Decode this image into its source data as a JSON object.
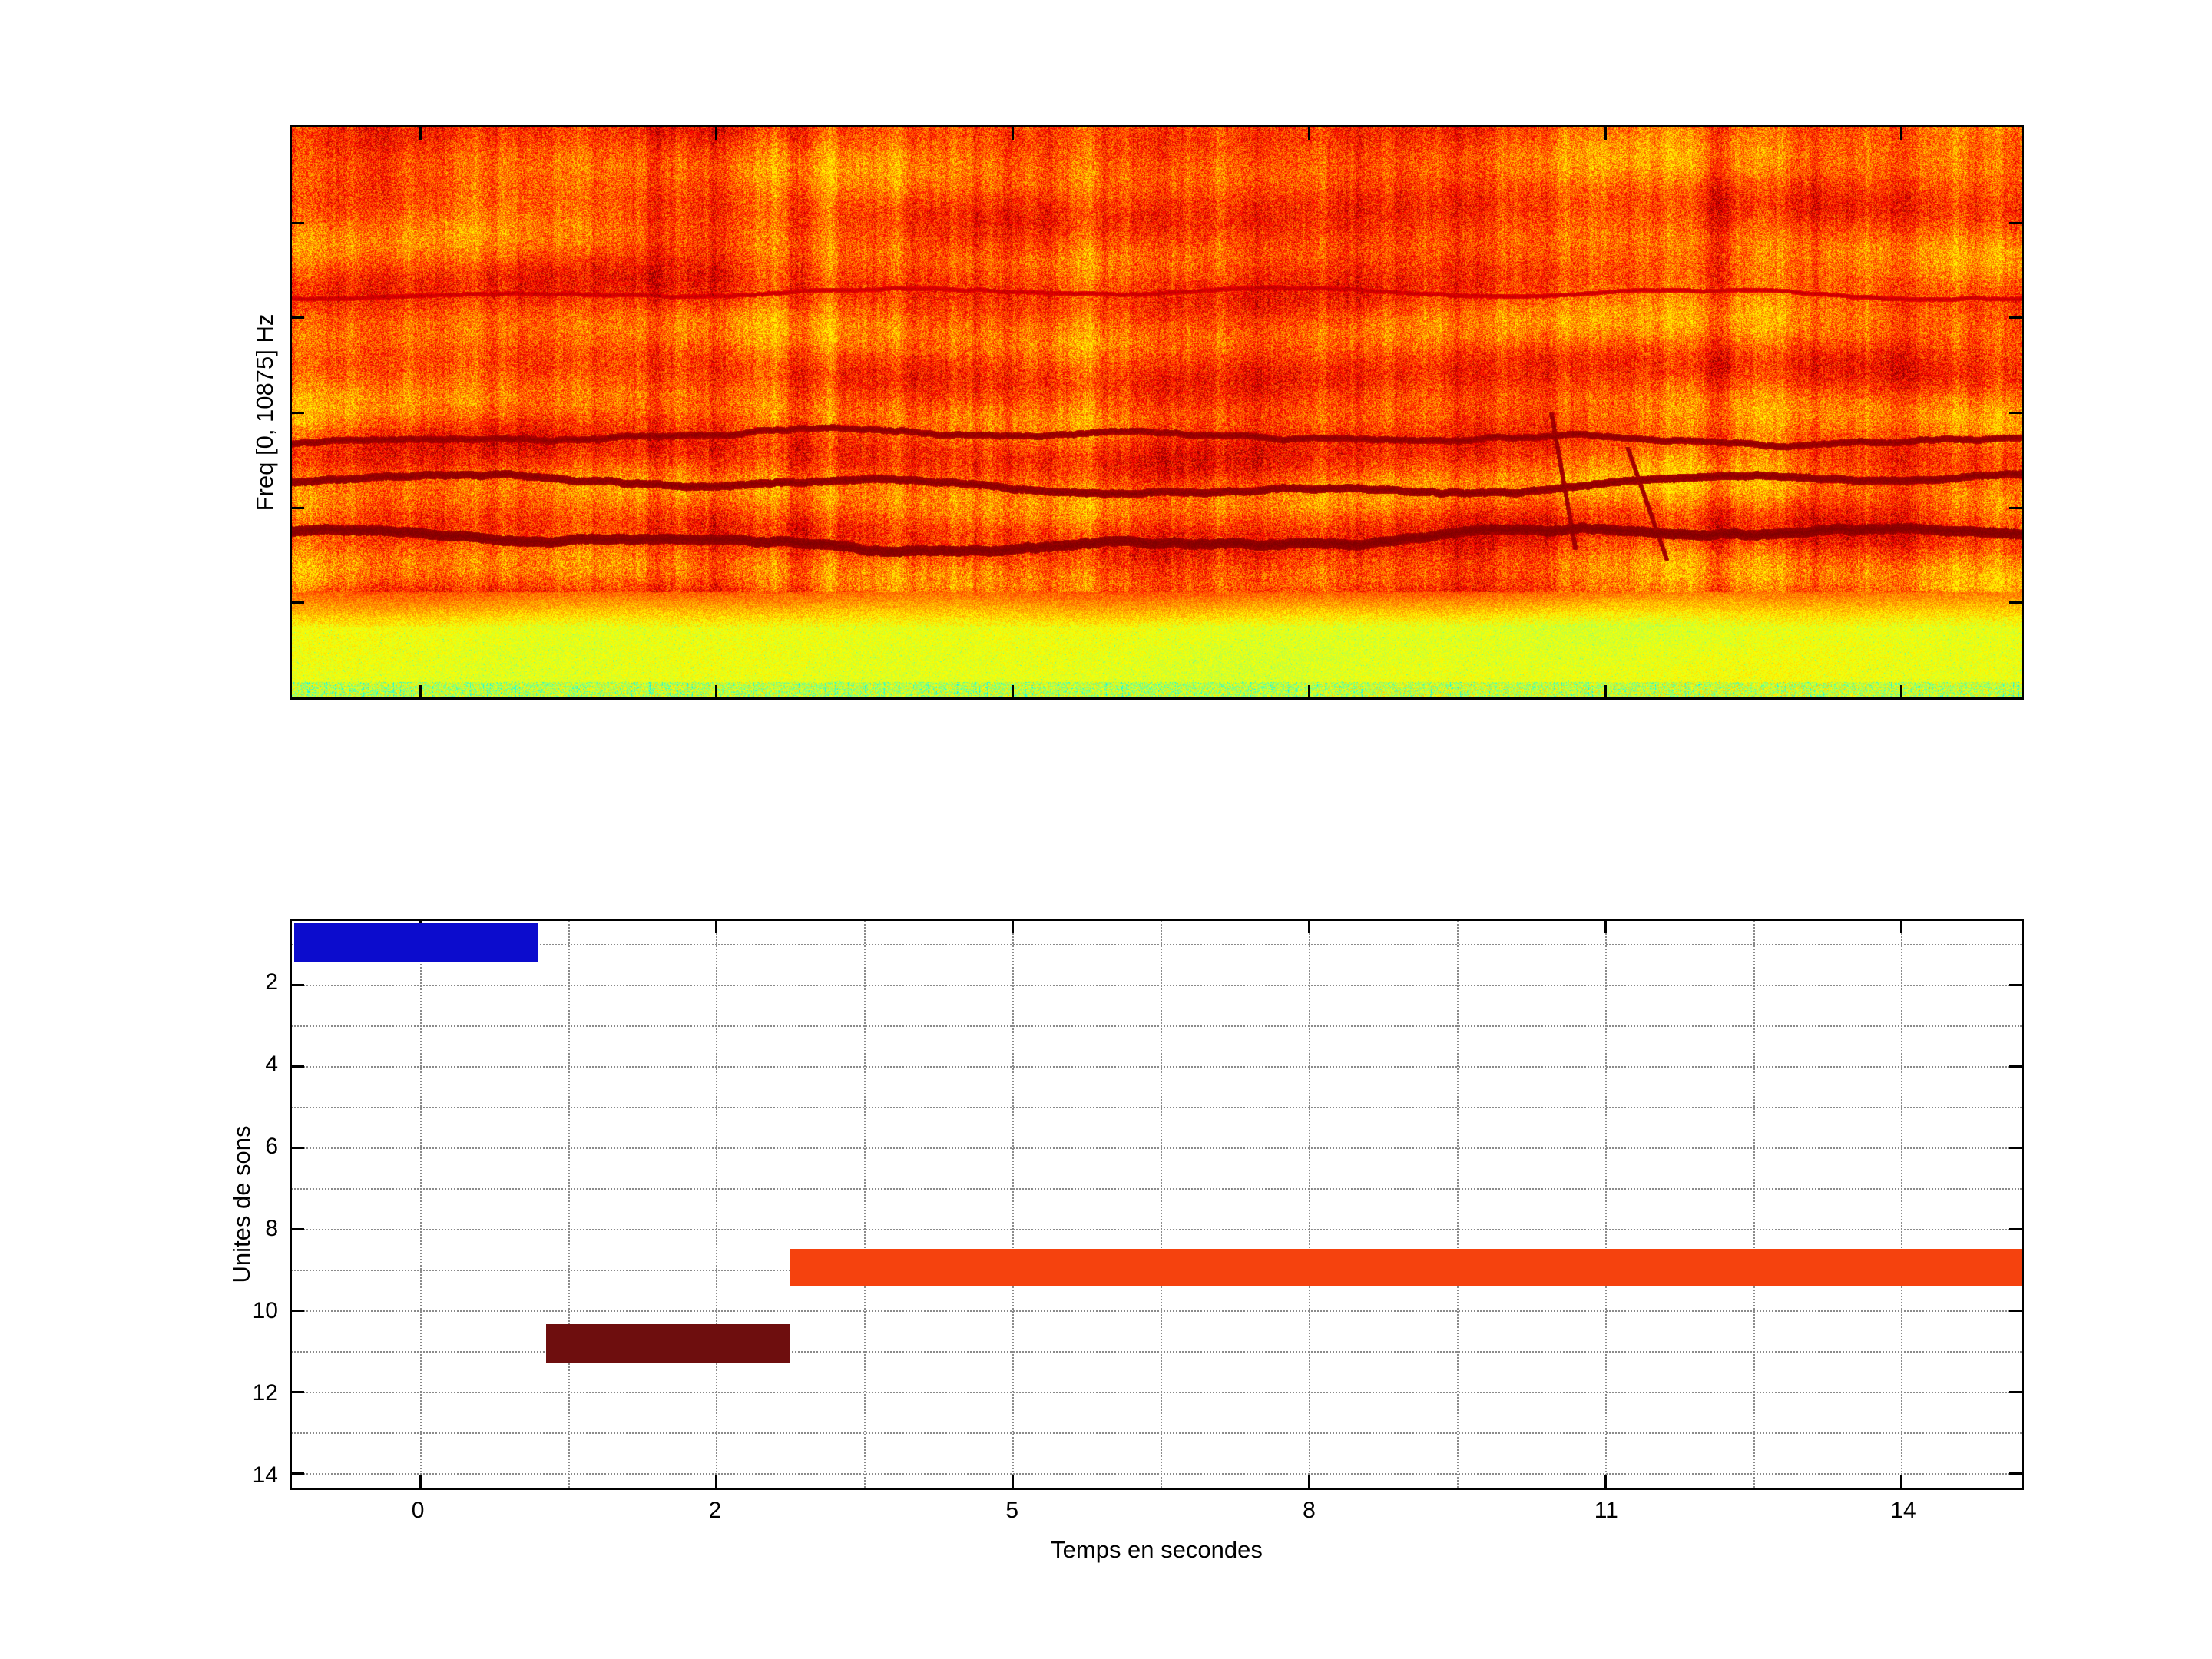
{
  "figure": {
    "background": "#ffffff",
    "kind": "matlab-style-figure",
    "subplot_count": 2
  },
  "chart_data": [
    {
      "type": "heatmap",
      "subtype": "spectrogram",
      "title": "",
      "ylabel": "Freq [0, 10875] Hz",
      "freq_range_hz": [
        0,
        10875
      ],
      "time_range_s": [
        -0.86,
        15.2
      ],
      "colormap": "jet",
      "legend": "none",
      "features": [
        {
          "feature": "broadband orange-red noise energy",
          "freq_fraction_from_top": [
            0.0,
            0.82
          ]
        },
        {
          "feature": "faint dark-red ripple band",
          "freq_fraction_from_top": [
            0.27,
            0.31
          ]
        },
        {
          "feature": "dark-red wavy harmonic line",
          "freq_fraction_from_top": [
            0.53,
            0.56
          ]
        },
        {
          "feature": "dark-red wavy harmonic line",
          "freq_fraction_from_top": [
            0.61,
            0.64
          ]
        },
        {
          "feature": "dark-red wavy harmonic line",
          "freq_fraction_from_top": [
            0.7,
            0.74
          ]
        },
        {
          "feature": "diagonal dark scratches",
          "time_fraction": [
            0.72,
            0.8
          ],
          "freq_fraction_from_top": [
            0.5,
            0.76
          ]
        },
        {
          "feature": "yellow-green low-energy band",
          "freq_fraction_from_top": [
            0.86,
            1.0
          ]
        },
        {
          "feature": "cyan speckles near 0 Hz",
          "freq_fraction_from_top": [
            0.97,
            1.0
          ]
        }
      ]
    },
    {
      "type": "bar",
      "subtype": "horizontal-time-segments",
      "title": "",
      "xlabel": "Temps en secondes",
      "ylabel": "Unites de sons",
      "xlim": [
        -0.86,
        15.2
      ],
      "ylim": [
        0.44,
        14.36
      ],
      "y_axis_reversed": true,
      "grid": "dotted",
      "legend": "none",
      "x_ticks": [
        0,
        2,
        5,
        8,
        11,
        14
      ],
      "x_tick_labels": [
        "0",
        "2",
        "5",
        "8",
        "11",
        "14"
      ],
      "y_ticks": [
        2,
        4,
        6,
        8,
        10,
        12,
        14
      ],
      "y_tick_labels": [
        "2",
        "4",
        "6",
        "8",
        "10",
        "12",
        "14"
      ],
      "segments": [
        {
          "sound_unit": 1,
          "t_start": -0.85,
          "t_end": 0.8,
          "u0": 0.5,
          "u1": 1.45,
          "color": "#0c0ccd"
        },
        {
          "sound_unit": 11,
          "t_start": 0.85,
          "t_end": 2.75,
          "u0": 10.35,
          "u1": 11.3,
          "color": "#6e0e0e"
        },
        {
          "sound_unit": 9,
          "t_start": 2.75,
          "t_end": 15.3,
          "u0": 8.5,
          "u1": 9.4,
          "color": "#f5420e"
        }
      ]
    }
  ]
}
